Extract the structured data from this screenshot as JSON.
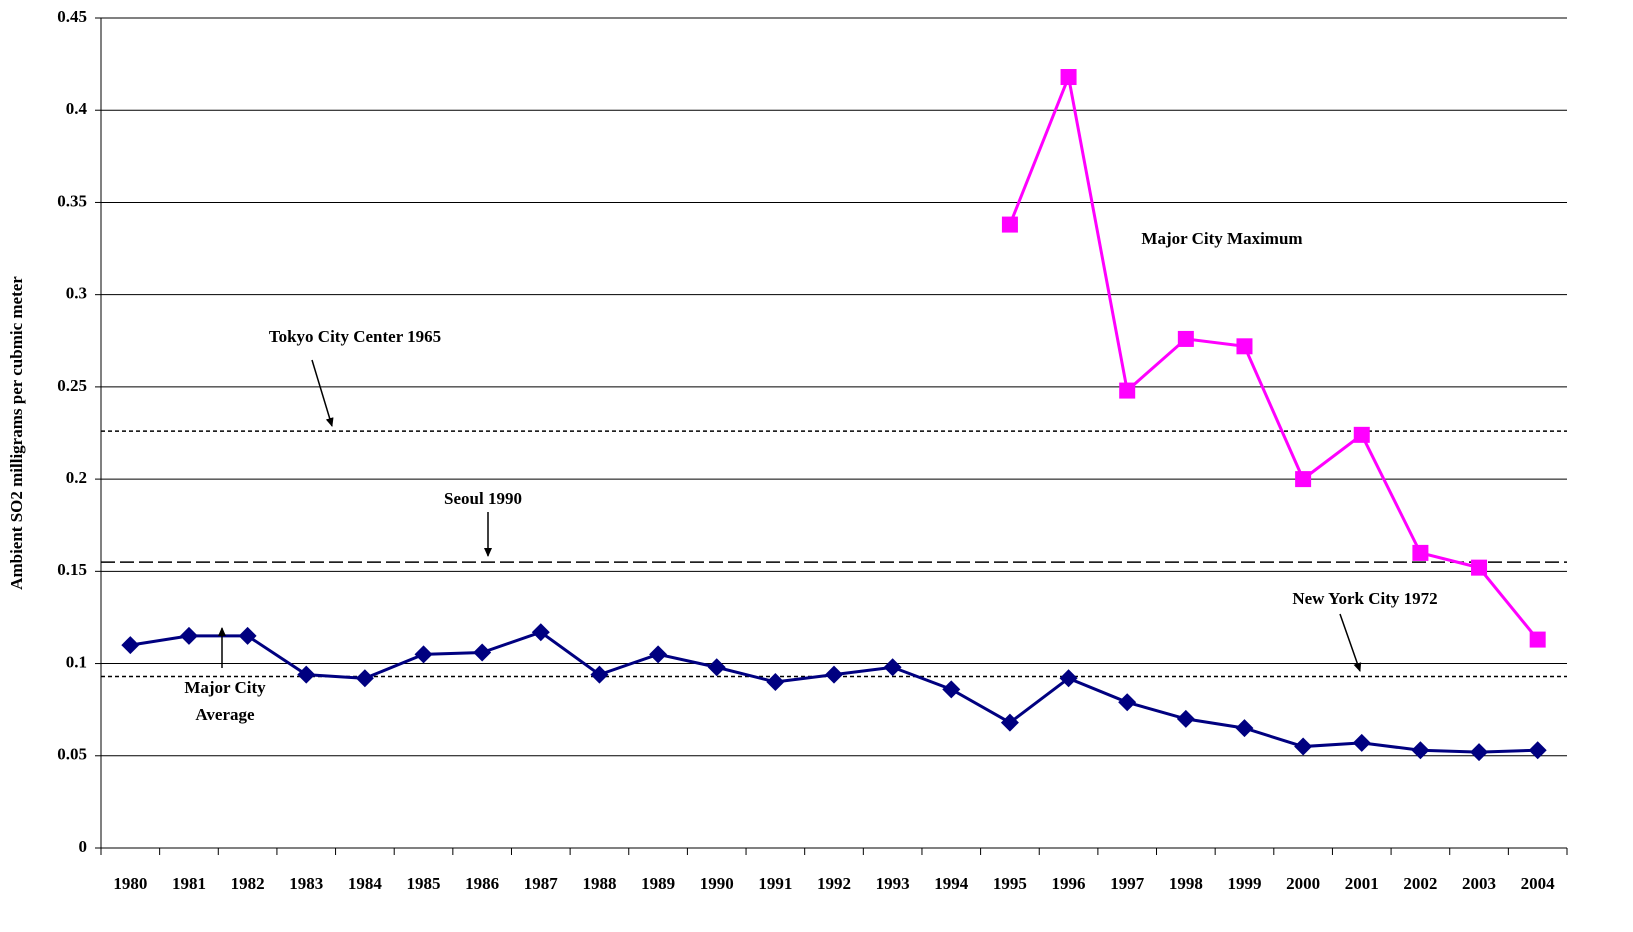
{
  "chart_data": {
    "type": "line",
    "y_label": "Ambient SO2 milligrams per cubmic meter",
    "categories": [
      "1980",
      "1981",
      "1982",
      "1983",
      "1984",
      "1985",
      "1986",
      "1987",
      "1988",
      "1989",
      "1990",
      "1991",
      "1992",
      "1993",
      "1994",
      "1995",
      "1996",
      "1997",
      "1998",
      "1999",
      "2000",
      "2001",
      "2002",
      "2003",
      "2004"
    ],
    "series": [
      {
        "name": "Major City Average",
        "color": "#000080",
        "marker": "diamond",
        "values": [
          0.11,
          0.115,
          0.115,
          0.094,
          0.092,
          0.105,
          0.106,
          0.117,
          0.094,
          0.105,
          0.098,
          0.09,
          0.094,
          0.098,
          0.086,
          0.068,
          0.092,
          0.079,
          0.07,
          0.065,
          0.055,
          0.057,
          0.053,
          0.052,
          0.053
        ]
      },
      {
        "name": "Major City Maximum",
        "color": "#ff00ff",
        "marker": "square",
        "values": [
          null,
          null,
          null,
          null,
          null,
          null,
          null,
          null,
          null,
          null,
          null,
          null,
          null,
          null,
          null,
          0.338,
          0.418,
          0.248,
          0.276,
          0.272,
          0.2,
          0.224,
          0.16,
          0.152,
          0.113
        ]
      }
    ],
    "reference_lines": [
      {
        "name": "Tokyo City Center 1965",
        "value": 0.226,
        "style": "dotted"
      },
      {
        "name": "Seoul 1990",
        "value": 0.155,
        "style": "dashed"
      },
      {
        "name": "New York City 1972",
        "value": 0.093,
        "style": "dotted"
      }
    ],
    "ylim": [
      0,
      0.45
    ],
    "yticks": [
      0,
      0.05,
      0.1,
      0.15,
      0.2,
      0.25,
      0.3,
      0.35,
      0.4,
      0.45
    ],
    "grid": true
  }
}
